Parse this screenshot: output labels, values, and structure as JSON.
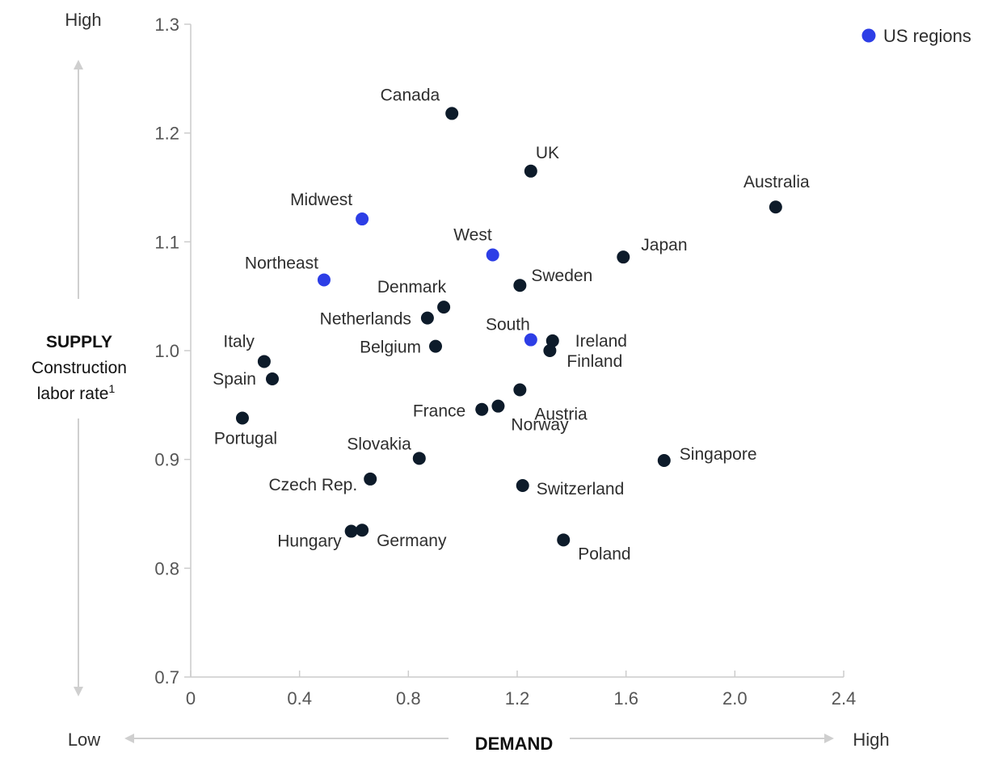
{
  "corner_labels": {
    "y_high": "High",
    "x_low": "Low",
    "x_high": "High"
  },
  "y_axis_title": {
    "line1": "SUPPLY",
    "line2": "Construction",
    "line3": "labor rate",
    "superscript": "1"
  },
  "x_axis_title": "DEMAND",
  "legend": {
    "label": "US regions",
    "color": "#2d3ee6"
  },
  "colors": {
    "country": "#0d1b2a",
    "us_region": "#2d3ee6",
    "axis": "#c8c8c8"
  },
  "chart_data": {
    "type": "scatter",
    "xlabel": "DEMAND",
    "ylabel": "SUPPLY Construction labor rate¹",
    "xlim": [
      0,
      2.4
    ],
    "ylim": [
      0.7,
      1.3
    ],
    "x_ticks": [
      "0",
      "0.4",
      "0.8",
      "1.2",
      "1.6",
      "2.0",
      "2.4"
    ],
    "y_ticks": [
      "0.7",
      "0.8",
      "0.9",
      "1.0",
      "1.1",
      "1.2",
      "1.3"
    ],
    "grid": false,
    "legend_position": "top-right",
    "series": [
      {
        "name": "",
        "points": [
          {
            "label": "Canada",
            "x": 0.96,
            "y": 1.218
          },
          {
            "label": "UK",
            "x": 1.25,
            "y": 1.165
          },
          {
            "label": "Australia",
            "x": 2.15,
            "y": 1.132
          },
          {
            "label": "Japan",
            "x": 1.59,
            "y": 1.086
          },
          {
            "label": "Sweden",
            "x": 1.21,
            "y": 1.06
          },
          {
            "label": "Denmark",
            "x": 0.93,
            "y": 1.04
          },
          {
            "label": "Netherlands",
            "x": 0.87,
            "y": 1.03
          },
          {
            "label": "Belgium",
            "x": 0.9,
            "y": 1.004
          },
          {
            "label": "Ireland",
            "x": 1.33,
            "y": 1.009
          },
          {
            "label": "Finland",
            "x": 1.32,
            "y": 1.0
          },
          {
            "label": "Italy",
            "x": 0.27,
            "y": 0.99
          },
          {
            "label": "Spain",
            "x": 0.3,
            "y": 0.974
          },
          {
            "label": "Austria",
            "x": 1.21,
            "y": 0.964
          },
          {
            "label": "France",
            "x": 1.07,
            "y": 0.946
          },
          {
            "label": "Norway",
            "x": 1.13,
            "y": 0.949
          },
          {
            "label": "Portugal",
            "x": 0.19,
            "y": 0.938
          },
          {
            "label": "Slovakia",
            "x": 0.84,
            "y": 0.901
          },
          {
            "label": "Singapore",
            "x": 1.74,
            "y": 0.899
          },
          {
            "label": "Czech Rep.",
            "x": 0.66,
            "y": 0.882
          },
          {
            "label": "Switzerland",
            "x": 1.22,
            "y": 0.876
          },
          {
            "label": "Hungary",
            "x": 0.59,
            "y": 0.834
          },
          {
            "label": "Germany",
            "x": 0.63,
            "y": 0.835
          },
          {
            "label": "Poland",
            "x": 1.37,
            "y": 0.826
          }
        ]
      },
      {
        "name": "US regions",
        "points": [
          {
            "label": "Midwest",
            "x": 0.63,
            "y": 1.121
          },
          {
            "label": "West",
            "x": 1.11,
            "y": 1.088
          },
          {
            "label": "Northeast",
            "x": 0.49,
            "y": 1.065
          },
          {
            "label": "South",
            "x": 1.25,
            "y": 1.01
          }
        ]
      }
    ]
  }
}
